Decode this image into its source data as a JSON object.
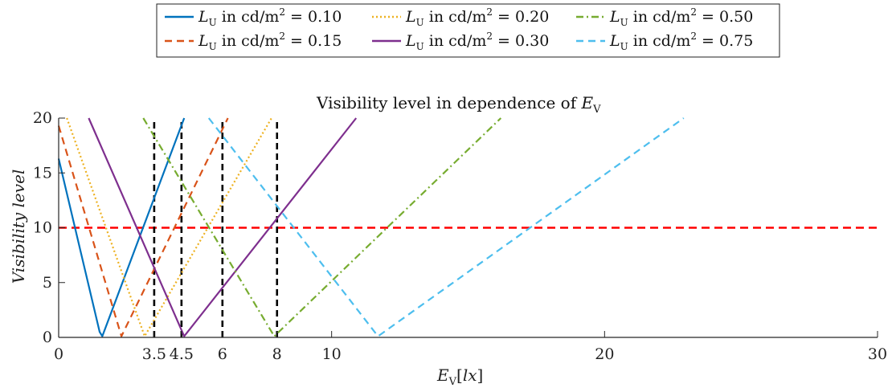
{
  "chart_data": {
    "type": "line",
    "title": "Visibility level in dependence of E_V",
    "xlabel": "E_V [lx]",
    "ylabel": "Visibility level",
    "xlim": [
      0,
      30
    ],
    "ylim": [
      0,
      20
    ],
    "x_ticks": [
      0,
      3.5,
      4.5,
      6,
      8,
      10,
      20,
      30
    ],
    "x_tick_labels": [
      "0",
      "3.5",
      "4.5",
      "6",
      "8",
      "10",
      "20",
      "30"
    ],
    "y_ticks": [
      0,
      5,
      10,
      15,
      20
    ],
    "y_tick_labels": [
      "0",
      "5",
      "10",
      "15",
      "20"
    ],
    "grid": false,
    "legend_position": "top-center",
    "legend_prefix": "L_U in cd/m^2 = ",
    "series": [
      {
        "name": "0.10",
        "color": "#0072BD",
        "dash": "solid",
        "points": [
          [
            0,
            16.3
          ],
          [
            1.5,
            0.5
          ],
          [
            1.6,
            0.1
          ],
          [
            4.6,
            20
          ]
        ]
      },
      {
        "name": "0.15",
        "color": "#D95319",
        "dash": "dashed",
        "points": [
          [
            0,
            19.3
          ],
          [
            2.3,
            0.1
          ],
          [
            6.2,
            20
          ]
        ]
      },
      {
        "name": "0.20",
        "color": "#EDB120",
        "dash": "dotted",
        "points": [
          [
            0.3,
            20
          ],
          [
            3.15,
            0.1
          ],
          [
            7.8,
            20
          ]
        ]
      },
      {
        "name": "0.30",
        "color": "#7E2F8E",
        "dash": "solid",
        "points": [
          [
            1.1,
            20
          ],
          [
            4.6,
            0.1
          ],
          [
            10.9,
            20
          ]
        ]
      },
      {
        "name": "0.50",
        "color": "#77AC30",
        "dash": "dashdot",
        "points": [
          [
            3.1,
            20
          ],
          [
            7.9,
            0.1
          ],
          [
            16.2,
            20
          ]
        ]
      },
      {
        "name": "0.75",
        "color": "#4DBEEE",
        "dash": "dashed",
        "points": [
          [
            5.5,
            20
          ],
          [
            11.7,
            0.1
          ],
          [
            22.9,
            20
          ]
        ]
      }
    ],
    "reference_lines": {
      "horizontal": {
        "y": 10,
        "color": "#FF0000"
      },
      "vertical": {
        "x": [
          3.5,
          4.5,
          6,
          8
        ],
        "color": "#000000"
      }
    }
  }
}
